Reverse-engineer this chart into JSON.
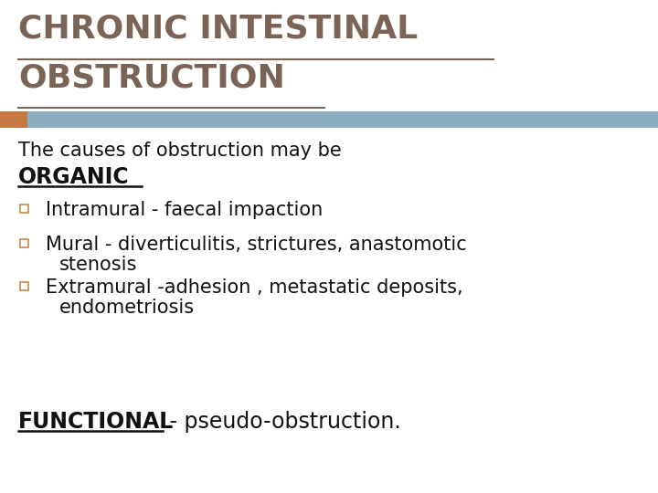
{
  "title_line1": "CHRONIC INTESTINAL",
  "title_line2": "OBSTRUCTION",
  "title_color": "#7B6455",
  "title_fontsize": 26,
  "header_bar_color": "#8BADC0",
  "header_bar_accent": "#C87941",
  "bg_color": "#FFFFFF",
  "body_text_color": "#111111",
  "intro_fontsize": 15,
  "organic_fontsize": 17,
  "bullet_fontsize": 15,
  "functional_fontsize": 17,
  "intro_text": "The causes of obstruction may be",
  "organic_label": "ORGANIC",
  "bullet_color": "#C8894A",
  "bullet_items_line1": [
    "Intramural - faecal impaction",
    "Mural - diverticulitis, strictures, anastomotic",
    "Extramural -adhesion , metastatic deposits,"
  ],
  "bullet_items_line2": [
    "",
    "stenosis",
    "endometriosis"
  ],
  "functional_bold": "FUNCTIONAL",
  "functional_rest": " - pseudo-obstruction."
}
